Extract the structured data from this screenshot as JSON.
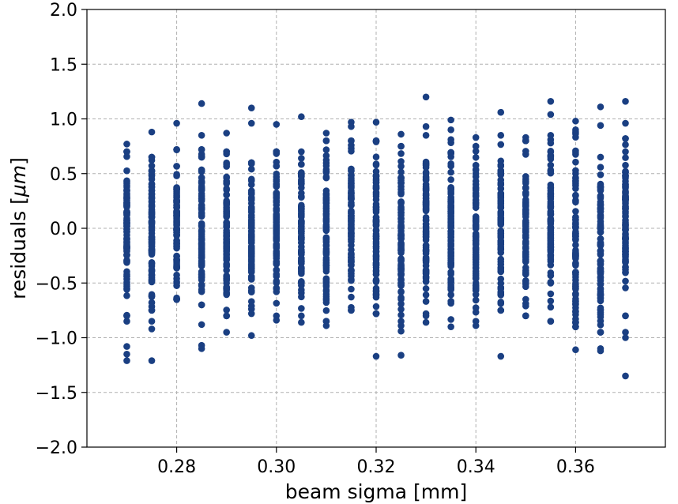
{
  "chart_data": {
    "type": "scatter",
    "xlabel": "beam sigma [mm]",
    "ylabel_text": "residuals [",
    "ylabel_unit": "μm",
    "ylabel_close": "]",
    "xlim": [
      0.262,
      0.378
    ],
    "ylim": [
      -2.0,
      2.0
    ],
    "x_ticks": [
      0.28,
      0.3,
      0.32,
      0.34,
      0.36
    ],
    "x_tick_labels": [
      "0.28",
      "0.30",
      "0.32",
      "0.34",
      "0.36"
    ],
    "y_ticks": [
      -2.0,
      -1.5,
      -1.0,
      -0.5,
      0.0,
      0.5,
      1.0,
      1.5,
      2.0
    ],
    "y_tick_labels": [
      "−2.0",
      "−1.5",
      "−1.0",
      "−0.5",
      "0.0",
      "0.5",
      "1.0",
      "1.5",
      "2.0"
    ],
    "grid": true,
    "marker_color": "#1a3f82",
    "x_values": [
      0.27,
      0.275,
      0.28,
      0.285,
      0.29,
      0.295,
      0.3,
      0.305,
      0.31,
      0.315,
      0.32,
      0.325,
      0.33,
      0.335,
      0.34,
      0.345,
      0.35,
      0.355,
      0.36,
      0.365,
      0.37
    ],
    "columns": [
      {
        "x": 0.27,
        "core": [
          -0.8,
          0.7
        ],
        "outliers": [
          0.77,
          -0.85,
          -1.08,
          -1.15,
          -1.21
        ]
      },
      {
        "x": 0.275,
        "core": [
          -0.75,
          0.65
        ],
        "outliers": [
          0.88,
          -0.85,
          -0.92,
          -1.21
        ]
      },
      {
        "x": 0.28,
        "core": [
          -0.65,
          0.72
        ],
        "outliers": [
          0.96
        ]
      },
      {
        "x": 0.285,
        "core": [
          -0.7,
          0.72
        ],
        "outliers": [
          1.14,
          0.85,
          -0.88,
          -1.07,
          -1.1
        ]
      },
      {
        "x": 0.29,
        "core": [
          -0.8,
          0.7
        ],
        "outliers": [
          0.87,
          -0.95
        ]
      },
      {
        "x": 0.295,
        "core": [
          -0.78,
          0.6
        ],
        "outliers": [
          1.1,
          0.96,
          -0.98
        ]
      },
      {
        "x": 0.3,
        "core": [
          -0.8,
          0.7
        ],
        "outliers": [
          0.95,
          -0.84
        ]
      },
      {
        "x": 0.305,
        "core": [
          -0.8,
          0.7
        ],
        "outliers": [
          1.02,
          -0.86
        ]
      },
      {
        "x": 0.31,
        "core": [
          -0.85,
          0.8
        ],
        "outliers": [
          0.87,
          -0.89
        ]
      },
      {
        "x": 0.315,
        "core": [
          -0.75,
          0.8
        ],
        "outliers": [
          0.97,
          0.93
        ]
      },
      {
        "x": 0.32,
        "core": [
          -0.78,
          0.8
        ],
        "outliers": [
          0.97,
          -1.17
        ]
      },
      {
        "x": 0.325,
        "core": [
          -0.85,
          0.75
        ],
        "outliers": [
          0.86,
          -0.89,
          -0.94,
          -1.16
        ]
      },
      {
        "x": 0.33,
        "core": [
          -0.78,
          0.85
        ],
        "outliers": [
          1.2,
          0.93,
          -0.8,
          -0.86
        ]
      },
      {
        "x": 0.335,
        "core": [
          -0.9,
          0.9
        ],
        "outliers": [
          0.99
        ]
      },
      {
        "x": 0.34,
        "core": [
          -0.85,
          0.75
        ],
        "outliers": [
          0.83,
          -0.89
        ]
      },
      {
        "x": 0.345,
        "core": [
          -0.75,
          0.85
        ],
        "outliers": [
          1.06,
          -1.17
        ]
      },
      {
        "x": 0.35,
        "core": [
          -0.8,
          0.8
        ],
        "outliers": [
          0.83
        ]
      },
      {
        "x": 0.355,
        "core": [
          -0.85,
          0.85
        ],
        "outliers": [
          1.16,
          1.04
        ]
      },
      {
        "x": 0.36,
        "core": [
          -0.9,
          0.9
        ],
        "outliers": [
          0.98,
          -1.11
        ]
      },
      {
        "x": 0.365,
        "core": [
          -0.95,
          0.65
        ],
        "outliers": [
          1.11,
          0.94,
          -1.1,
          -1.12
        ]
      },
      {
        "x": 0.37,
        "core": [
          -0.8,
          0.82
        ],
        "outliers": [
          1.16,
          0.96,
          -0.95,
          -1.0,
          -1.35
        ]
      }
    ]
  }
}
